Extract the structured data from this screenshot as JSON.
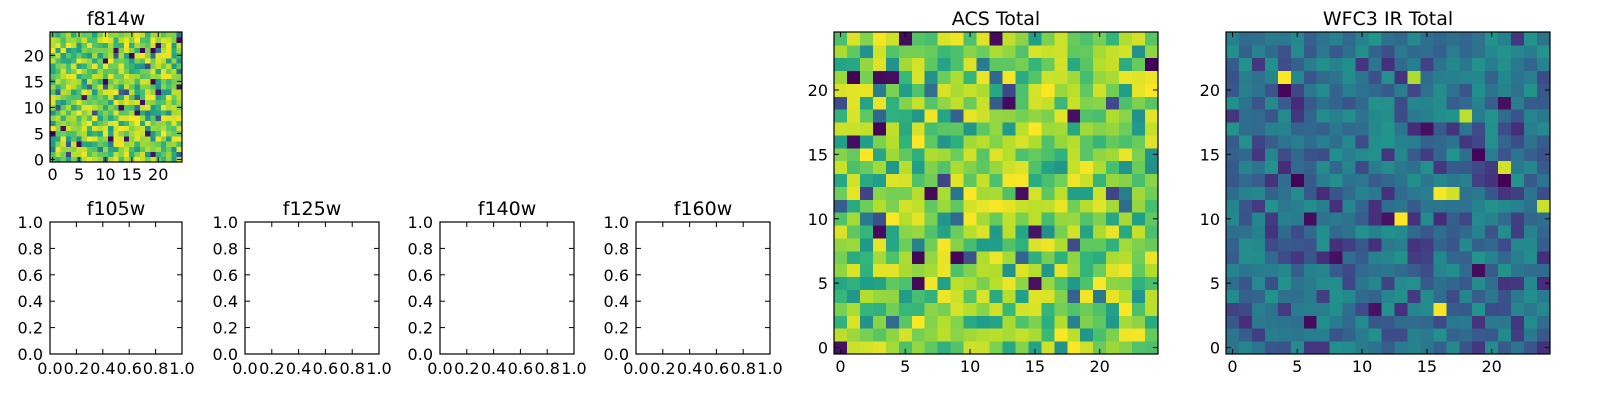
{
  "chart_data": [
    {
      "type": "heatmap",
      "title": "f814w",
      "xlim": [
        -0.5,
        24.5
      ],
      "ylim": [
        -0.5,
        24.5
      ],
      "xticks": [
        0,
        5,
        10,
        15,
        20
      ],
      "yticks": [
        0,
        5,
        10,
        15,
        20
      ],
      "tick_labels": [
        "0",
        "5",
        "10",
        "15",
        "20"
      ],
      "colormap": "viridis",
      "grid_size": 25,
      "seed": 814,
      "level_distribution": "mostly high (yellow-green), sparse low (purple) pixels"
    },
    {
      "type": "empty-axes",
      "title": "f105w",
      "xlim": [
        0.0,
        1.0
      ],
      "ylim": [
        0.0,
        1.0
      ],
      "xtick_labels": [
        "0.0",
        "0.2",
        "0.4",
        "0.6",
        "0.8",
        "1.0"
      ],
      "ytick_labels": [
        "0.0",
        "0.2",
        "0.4",
        "0.6",
        "0.8",
        "1.0"
      ]
    },
    {
      "type": "empty-axes",
      "title": "f125w",
      "xlim": [
        0.0,
        1.0
      ],
      "ylim": [
        0.0,
        1.0
      ],
      "xtick_labels": [
        "0.0",
        "0.2",
        "0.4",
        "0.6",
        "0.8",
        "1.0"
      ],
      "ytick_labels": [
        "0.0",
        "0.2",
        "0.4",
        "0.6",
        "0.8",
        "1.0"
      ]
    },
    {
      "type": "empty-axes",
      "title": "f140w",
      "xlim": [
        0.0,
        1.0
      ],
      "ylim": [
        0.0,
        1.0
      ],
      "xtick_labels": [
        "0.0",
        "0.2",
        "0.4",
        "0.6",
        "0.8",
        "1.0"
      ],
      "ytick_labels": [
        "0.0",
        "0.2",
        "0.4",
        "0.6",
        "0.8",
        "1.0"
      ]
    },
    {
      "type": "empty-axes",
      "title": "f160w",
      "xlim": [
        0.0,
        1.0
      ],
      "ylim": [
        0.0,
        1.0
      ],
      "xtick_labels": [
        "0.0",
        "0.2",
        "0.4",
        "0.6",
        "0.8",
        "1.0"
      ],
      "ytick_labels": [
        "0.0",
        "0.2",
        "0.4",
        "0.6",
        "0.8",
        "1.0"
      ]
    },
    {
      "type": "heatmap",
      "title": "ACS Total",
      "xlim": [
        -0.5,
        24.5
      ],
      "ylim": [
        -0.5,
        24.5
      ],
      "xticks": [
        0,
        5,
        10,
        15,
        20
      ],
      "yticks": [
        0,
        5,
        10,
        15,
        20
      ],
      "tick_labels": [
        "0",
        "5",
        "10",
        "15",
        "20"
      ],
      "colormap": "viridis",
      "grid_size": 25,
      "seed": 2001,
      "level_distribution": "mostly high (yellow-green), sparse low (purple) pixels"
    },
    {
      "type": "heatmap",
      "title": "WFC3 IR Total",
      "xlim": [
        -0.5,
        24.5
      ],
      "ylim": [
        -0.5,
        24.5
      ],
      "xticks": [
        0,
        5,
        10,
        15,
        20
      ],
      "yticks": [
        0,
        5,
        10,
        15,
        20
      ],
      "tick_labels": [
        "0",
        "5",
        "10",
        "15",
        "20"
      ],
      "colormap": "viridis",
      "grid_size": 25,
      "seed": 3001,
      "level_distribution": "mostly mid (teal-blue), sparse low (purple) and rare high (yellow) pixels"
    }
  ]
}
